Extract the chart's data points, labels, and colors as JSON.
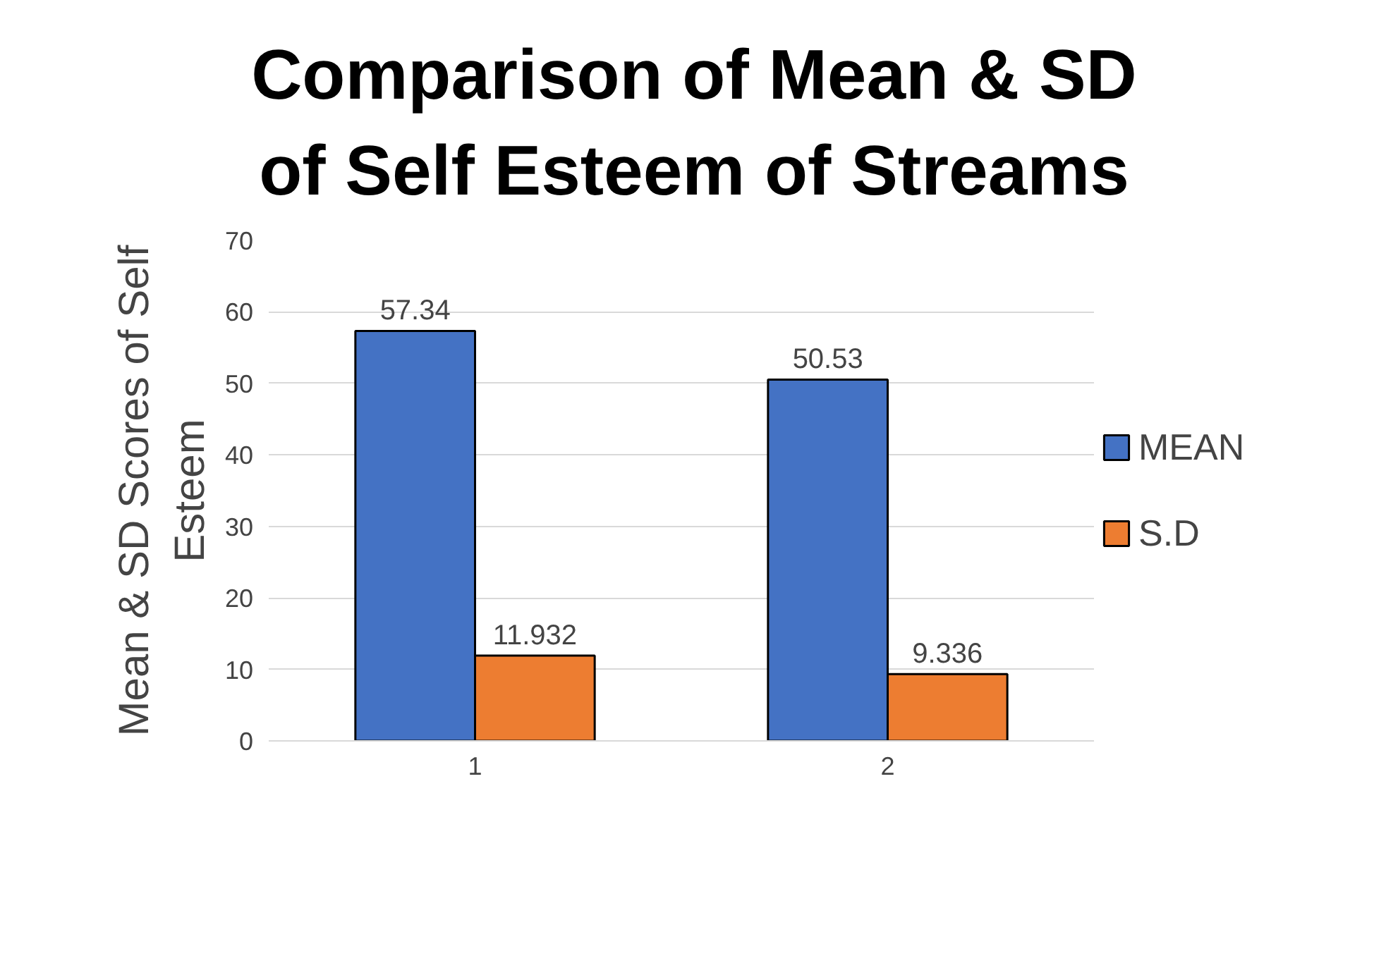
{
  "chart_data": {
    "type": "bar",
    "title": "Comparison of Mean & SD of Self Esteem of Streams",
    "ylabel": "Mean & SD Scores of Self Esteem",
    "categories": [
      "1",
      "2"
    ],
    "series": [
      {
        "name": "MEAN",
        "color": "#4472c4",
        "values": [
          57.34,
          50.53
        ]
      },
      {
        "name": "S.D",
        "color": "#ed7d31",
        "values": [
          11.932,
          9.336
        ]
      }
    ],
    "ylim": [
      0,
      70
    ],
    "yticks": [
      0,
      10,
      20,
      30,
      40,
      50,
      60,
      70
    ],
    "grid": "y",
    "legend": "right",
    "data_labels": true
  }
}
